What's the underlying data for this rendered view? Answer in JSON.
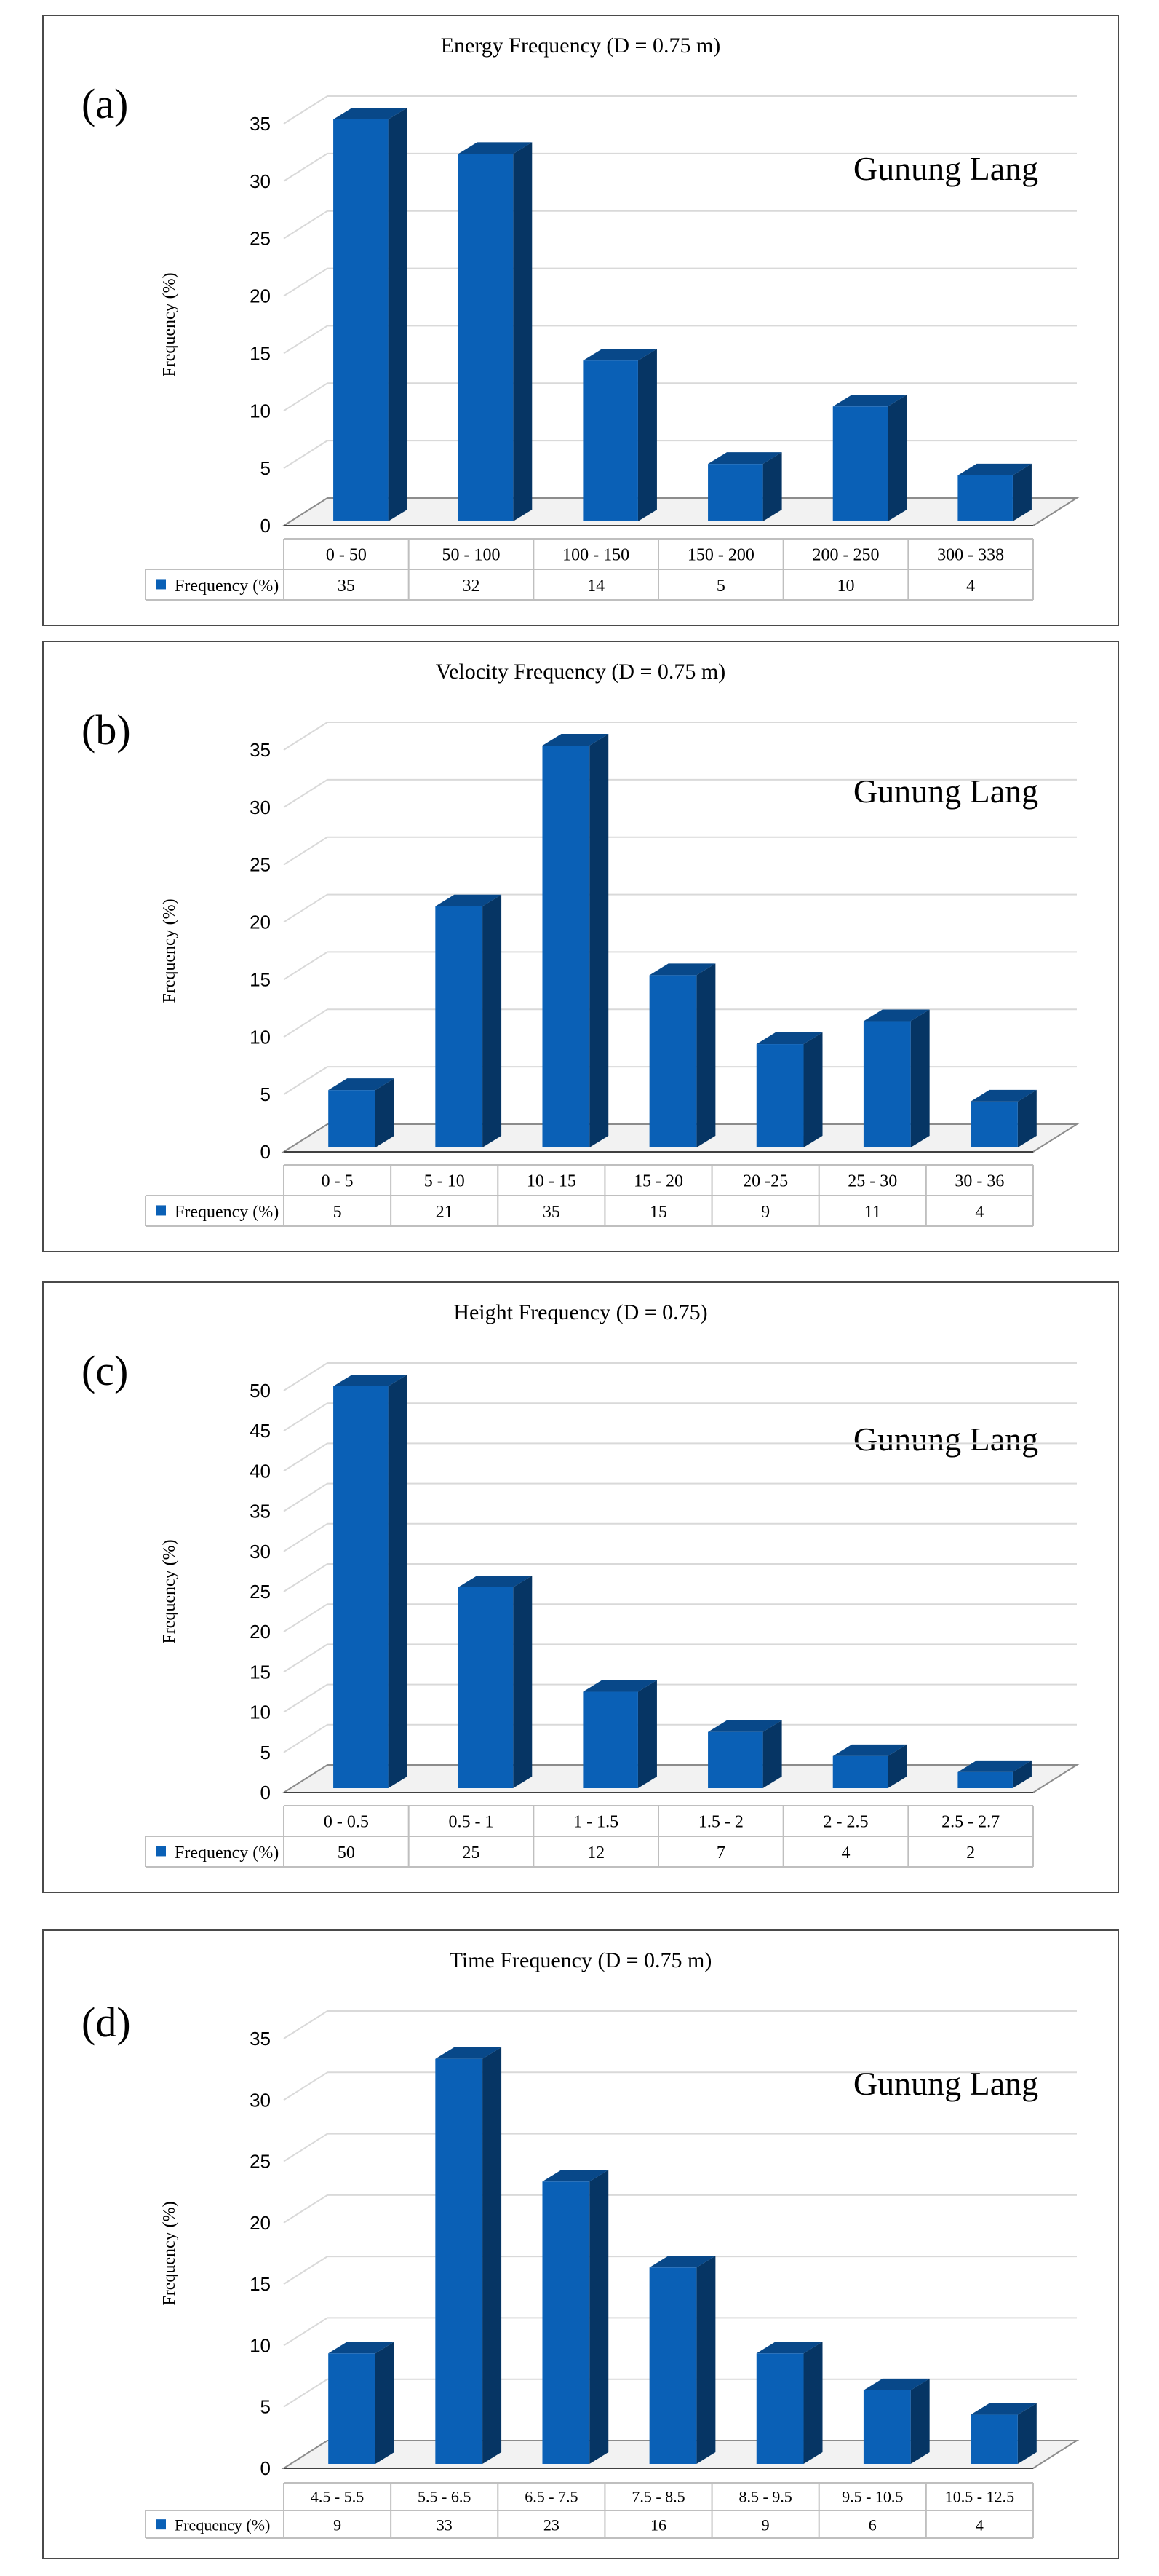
{
  "chart_data": [
    {
      "type": "bar",
      "panel_label": "(a)",
      "title": "Energy Frequency (D = 0.75 m)",
      "annotation": "Gunung Lang",
      "ylabel": "Frequency (%)",
      "ylim": [
        0,
        35
      ],
      "yticks": [
        0,
        5,
        10,
        15,
        20,
        25,
        30,
        35
      ],
      "categories": [
        "0 - 50",
        "50 - 100",
        "100 - 150",
        "150 - 200",
        "200 - 250",
        "300 - 338"
      ],
      "series": [
        {
          "name": "Frequency (%)",
          "values": [
            35,
            32,
            14,
            5,
            10,
            4
          ],
          "color": "#0a60b6"
        }
      ],
      "grid": true,
      "legend": "data-table"
    },
    {
      "type": "bar",
      "panel_label": "(b)",
      "title": "Velocity Frequency (D = 0.75 m)",
      "annotation": "Gunung Lang",
      "ylabel": "Frequency (%)",
      "ylim": [
        0,
        35
      ],
      "yticks": [
        0,
        5,
        10,
        15,
        20,
        25,
        30,
        35
      ],
      "categories": [
        "0 - 5",
        "5 - 10",
        "10 - 15",
        "15 - 20",
        "20 -25",
        "25 - 30",
        "30 - 36"
      ],
      "series": [
        {
          "name": "Frequency (%)",
          "values": [
            5,
            21,
            35,
            15,
            9,
            11,
            4
          ],
          "color": "#0a60b6"
        }
      ],
      "grid": true,
      "legend": "data-table"
    },
    {
      "type": "bar",
      "panel_label": "(c)",
      "title": "Height Frequency (D = 0.75)",
      "annotation": "Gunung Lang",
      "ylabel": "Frequency (%)",
      "ylim": [
        0,
        50
      ],
      "yticks": [
        0,
        5,
        10,
        15,
        20,
        25,
        30,
        35,
        40,
        45,
        50
      ],
      "categories": [
        "0 - 0.5",
        "0.5 - 1",
        "1 - 1.5",
        "1.5 - 2",
        "2 - 2.5",
        "2.5 - 2.7"
      ],
      "series": [
        {
          "name": "Frequency (%)",
          "values": [
            50,
            25,
            12,
            7,
            4,
            2
          ],
          "color": "#0a60b6"
        }
      ],
      "grid": true,
      "legend": "data-table"
    },
    {
      "type": "bar",
      "panel_label": "(d)",
      "title": "Time Frequency (D = 0.75 m)",
      "annotation": "Gunung Lang",
      "ylabel": "Frequency (%)",
      "ylim": [
        0,
        35
      ],
      "yticks": [
        0,
        5,
        10,
        15,
        20,
        25,
        30,
        35
      ],
      "categories": [
        "4.5 - 5.5",
        "5.5 - 6.5",
        "6.5 - 7.5",
        "7.5 - 8.5",
        "8.5 - 9.5",
        "9.5 - 10.5",
        "10.5 - 12.5"
      ],
      "series": [
        {
          "name": "Frequency (%)",
          "values": [
            9,
            33,
            23,
            16,
            9,
            6,
            4
          ],
          "color": "#0a60b6"
        }
      ],
      "grid": true,
      "legend": "data-table"
    }
  ]
}
